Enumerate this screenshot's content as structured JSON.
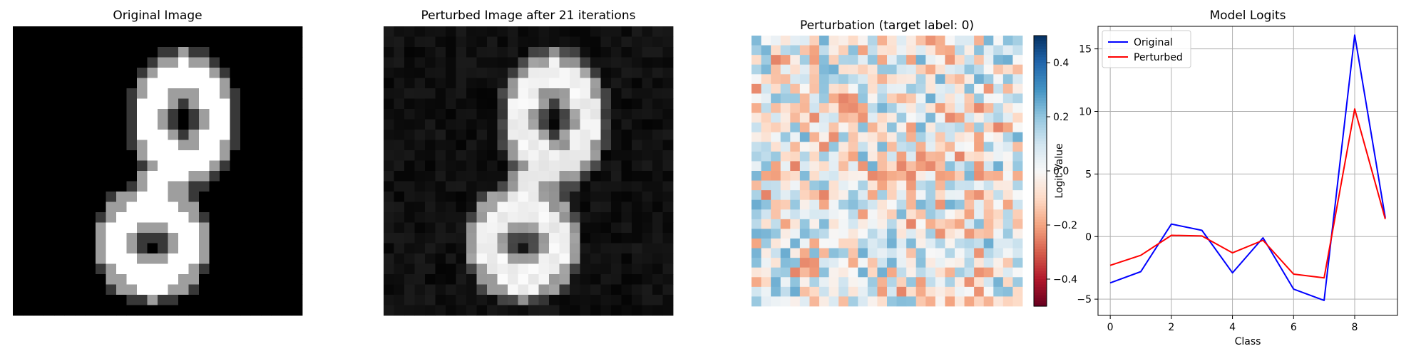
{
  "panels": {
    "original": {
      "title": "Original Image"
    },
    "perturbed": {
      "title": "Perturbed Image after 21 iterations"
    },
    "perturbation": {
      "title": "Perturbation (target label: 0)"
    },
    "logits": {
      "title": "Model Logits"
    }
  },
  "chart_data": [
    {
      "type": "heatmap",
      "title": "Original Image",
      "grid_size": [
        28,
        28
      ],
      "colormap": "gray",
      "value_range": [
        0,
        1
      ],
      "content": "handwritten digit 8, white strokes on black background",
      "axes": "off"
    },
    {
      "type": "heatmap",
      "title": "Perturbed Image after 21 iterations",
      "grid_size": [
        28,
        28
      ],
      "colormap": "gray",
      "value_range": [
        0,
        1
      ],
      "content": "digit 8 with low-amplitude noise in background",
      "axes": "off"
    },
    {
      "type": "heatmap",
      "title": "Perturbation (target label: 0)",
      "grid_size": [
        28,
        28
      ],
      "colormap": "RdBu",
      "value_range": [
        -0.5,
        0.5
      ],
      "colorbar_ticks": [
        "0.4",
        "0.2",
        "0.0",
        "−0.2",
        "−0.4"
      ],
      "colorbar_tick_values": [
        0.4,
        0.2,
        0.0,
        -0.2,
        -0.4
      ],
      "axes": "off"
    },
    {
      "type": "line",
      "title": "Model Logits",
      "xlabel": "Class",
      "ylabel": "Logit Value",
      "x": [
        0,
        1,
        2,
        3,
        4,
        5,
        6,
        7,
        8,
        9
      ],
      "xlim": [
        -0.4,
        9.4
      ],
      "ylim": [
        -6.3,
        16.8
      ],
      "xticks": [
        "0",
        "2",
        "4",
        "6",
        "8"
      ],
      "xtick_values": [
        0,
        2,
        4,
        6,
        8
      ],
      "yticks": [
        "15",
        "10",
        "5",
        "0",
        "−5"
      ],
      "ytick_values": [
        15,
        10,
        5,
        0,
        -5
      ],
      "grid": true,
      "legend": "top-left",
      "series": [
        {
          "name": "Original",
          "color": "#0000ff",
          "values": [
            -3.7,
            -2.8,
            1.0,
            0.5,
            -2.9,
            -0.1,
            -4.2,
            -5.1,
            16.1,
            1.5
          ]
        },
        {
          "name": "Perturbed",
          "color": "#ff0000",
          "values": [
            -2.3,
            -1.5,
            0.1,
            0.05,
            -1.3,
            -0.3,
            -3.0,
            -3.3,
            10.2,
            1.4
          ]
        }
      ]
    }
  ]
}
